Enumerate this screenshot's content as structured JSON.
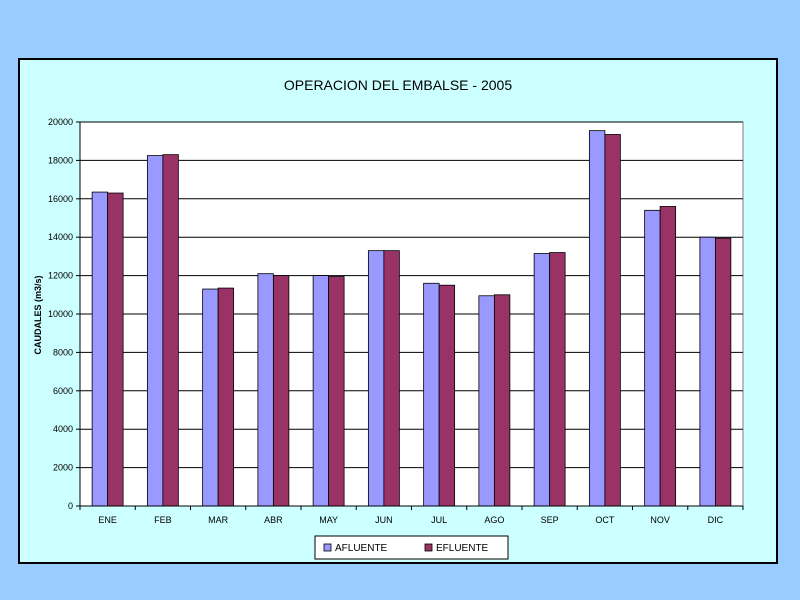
{
  "chart_data": {
    "type": "bar",
    "title": "OPERACION DEL EMBALSE - 2005",
    "xlabel": "",
    "ylabel": "CAUDALES (m3/s)",
    "ylim": [
      0,
      20000
    ],
    "yticks": [
      0,
      2000,
      4000,
      6000,
      8000,
      10000,
      12000,
      14000,
      16000,
      18000,
      20000
    ],
    "grid": true,
    "legend_position": "bottom",
    "categories": [
      "ENE",
      "FEB",
      "MAR",
      "ABR",
      "MAY",
      "JUN",
      "JUL",
      "AGO",
      "SEP",
      "OCT",
      "NOV",
      "DIC"
    ],
    "series": [
      {
        "name": "AFLUENTE",
        "color": "#9999ff",
        "values": [
          16350,
          18250,
          11300,
          12100,
          12000,
          13300,
          11600,
          10950,
          13150,
          19550,
          15400,
          14000
        ]
      },
      {
        "name": "EFLUENTE",
        "color": "#993366",
        "values": [
          16300,
          18300,
          11350,
          12000,
          11950,
          13300,
          11500,
          11000,
          13200,
          19350,
          15600,
          13950
        ]
      }
    ]
  },
  "colors": {
    "page_background": "#99ccff",
    "chart_background": "#ccffff",
    "plot_background": "#ffffff",
    "gridline": "#000000"
  }
}
